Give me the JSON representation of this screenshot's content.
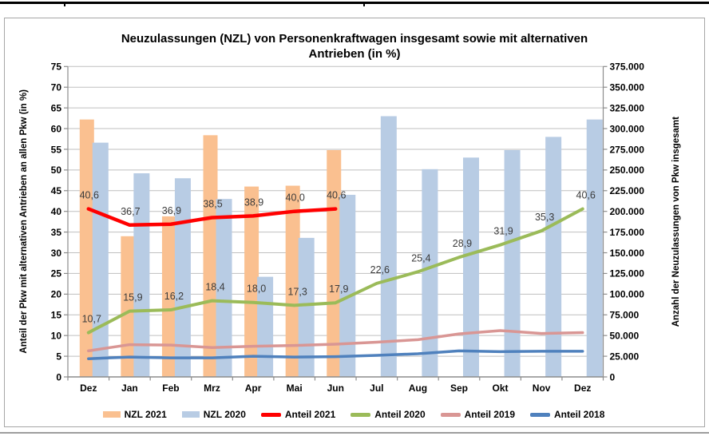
{
  "chart_data": {
    "type": "combo-bar-line",
    "title": "Neuzulassungen (NZL) von Personenkraftwagen insgesamt sowie mit alternativen Antrieben (in %)",
    "categories": [
      "Dez",
      "Jan",
      "Feb",
      "Mrz",
      "Apr",
      "Mai",
      "Jun",
      "Jul",
      "Aug",
      "Sep",
      "Okt",
      "Nov",
      "Dez"
    ],
    "grid": true,
    "legend_position": "bottom",
    "left_axis": {
      "label": "Anteil der Pkw mit alternativen Antrieben an allen Pkw (in %)",
      "min": 0,
      "max": 75,
      "step": 5,
      "ticks": [
        "0",
        "5",
        "10",
        "15",
        "20",
        "25",
        "30",
        "35",
        "40",
        "45",
        "50",
        "55",
        "60",
        "65",
        "70",
        "75"
      ]
    },
    "right_axis": {
      "label": "Anzahl der Neuzulassungen von Pkw insgesamt",
      "min": 0,
      "max": 375000,
      "step": 25000,
      "ticks": [
        "0",
        "25.000",
        "50.000",
        "75.000",
        "100.000",
        "125.000",
        "150.000",
        "175.000",
        "200.000",
        "225.000",
        "250.000",
        "275.000",
        "300.000",
        "325.000",
        "350.000",
        "375.000"
      ]
    },
    "bar_series": [
      {
        "name": "NZL 2021",
        "axis": "right",
        "color": "#FAC090",
        "values": [
          311000,
          170000,
          194000,
          292000,
          230000,
          231000,
          274000
        ]
      },
      {
        "name": "NZL 2020",
        "axis": "right",
        "color": "#B8CCE4",
        "values": [
          283000,
          246000,
          240000,
          215000,
          121000,
          168000,
          220000,
          315000,
          251000,
          265000,
          274000,
          290000,
          311000
        ]
      }
    ],
    "line_series": [
      {
        "name": "Anteil 2021",
        "axis": "left",
        "color": "#FF0000",
        "width": 4.5,
        "values": [
          40.6,
          36.7,
          36.9,
          38.5,
          38.9,
          40.0,
          40.6
        ],
        "labels": [
          "40,6",
          "36,7",
          "36,9",
          "38,5",
          "38,9",
          "40,0",
          "40,6"
        ]
      },
      {
        "name": "Anteil 2020",
        "axis": "left",
        "color": "#9BBB59",
        "width": 4,
        "values": [
          10.7,
          15.9,
          16.2,
          18.4,
          18.0,
          17.3,
          17.9,
          22.6,
          25.4,
          28.9,
          31.9,
          35.3,
          40.6
        ],
        "labels": [
          "10,7",
          "15,9",
          "16,2",
          "18,4",
          "18,0",
          "17,3",
          "17,9",
          "22,6",
          "25,4",
          "28,9",
          "31,9",
          "35,3",
          "40,6"
        ]
      },
      {
        "name": "Anteil 2019",
        "axis": "left",
        "color": "#D99694",
        "width": 3.5,
        "values": [
          6.3,
          7.8,
          7.7,
          7.1,
          7.4,
          7.6,
          7.9,
          8.4,
          9.0,
          10.4,
          11.2,
          10.5,
          10.7
        ],
        "labels": []
      },
      {
        "name": "Anteil 2018",
        "axis": "left",
        "color": "#4F81BD",
        "width": 3.5,
        "values": [
          4.4,
          4.8,
          4.6,
          4.6,
          5.0,
          4.8,
          4.9,
          5.2,
          5.6,
          6.3,
          6.1,
          6.2,
          6.2
        ],
        "labels": []
      }
    ],
    "legend": [
      "NZL 2021",
      "NZL 2020",
      "Anteil 2021",
      "Anteil 2020",
      "Anteil 2019",
      "Anteil 2018"
    ]
  }
}
